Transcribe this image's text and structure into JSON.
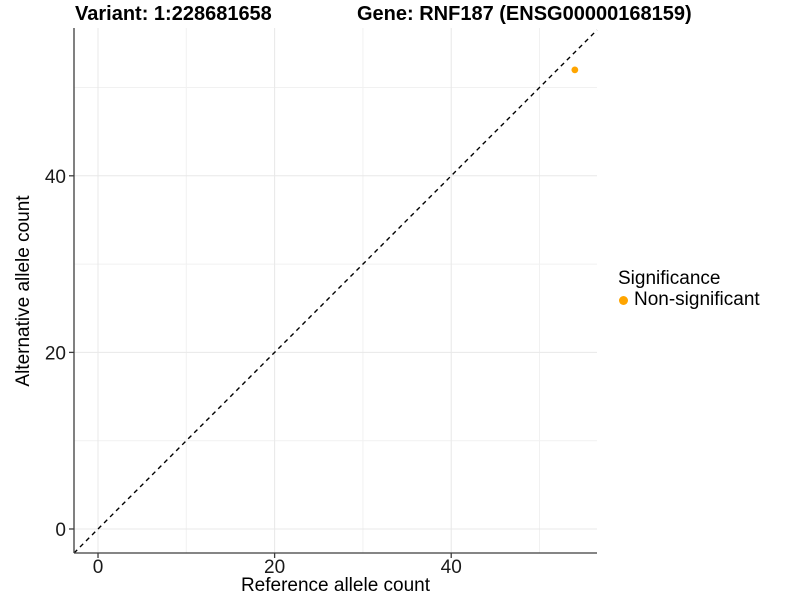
{
  "titles": {
    "variant": "Variant: 1:228681658",
    "gene": "Gene: RNF187 (ENSG00000168159)"
  },
  "legend": {
    "title": "Significance",
    "items": [
      {
        "label": "Non-significant",
        "color": "#FFA500"
      }
    ]
  },
  "chart_data": {
    "type": "scatter",
    "title": "Variant: 1:228681658  Gene: RNF187 (ENSG00000168159)",
    "xlabel": "Reference allele count",
    "ylabel": "Alternative allele count",
    "xlim": [
      -2.72,
      56.51
    ],
    "ylim": [
      -2.72,
      56.74
    ],
    "x_ticks": [
      0,
      20,
      40
    ],
    "y_ticks": [
      0,
      20,
      40
    ],
    "x_minor_gridlines": [
      10,
      30,
      50
    ],
    "y_minor_gridlines": [
      10,
      30,
      50
    ],
    "grid": true,
    "legend_position": "right",
    "legend_title": "Significance",
    "identity_line": {
      "style": "dashed",
      "color": "#000000",
      "from": -2.72,
      "to": 56.51
    },
    "series": [
      {
        "name": "Non-significant",
        "color": "#FFA500",
        "points": [
          {
            "x": 54,
            "y": 52
          }
        ]
      }
    ],
    "style": {
      "major_grid_color": "#e8e8e8",
      "minor_grid_color": "#f1f1f1",
      "axis_color": "#3c3c3c",
      "tick_label_color": "#1a1a1a",
      "background": "#ffffff"
    }
  }
}
